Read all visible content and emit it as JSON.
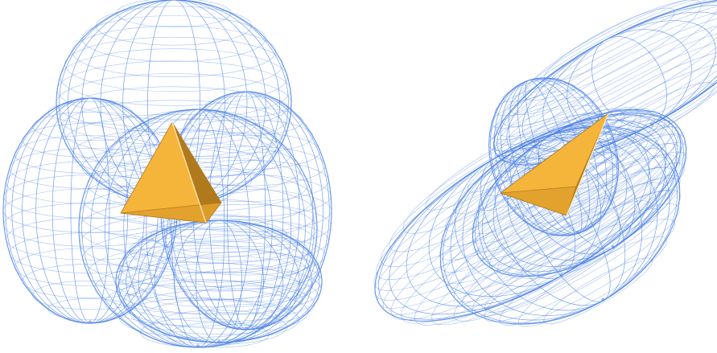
{
  "figure": {
    "panels": [
      {
        "name": "left-sphere-cluster",
        "wire_count": 5,
        "solid": "tetrahedron"
      },
      {
        "name": "right-ellipsoid-cluster",
        "wire_count": 5,
        "solid": "tetrahedron"
      }
    ]
  },
  "colors": {
    "wire": "#4d84e6",
    "tetra_light": "#f5b53b",
    "tetra_mid": "#e0a02c",
    "tetra_dark": "#b07a1c",
    "edge_light": "#ffe7b0",
    "background": "#ffffff"
  }
}
